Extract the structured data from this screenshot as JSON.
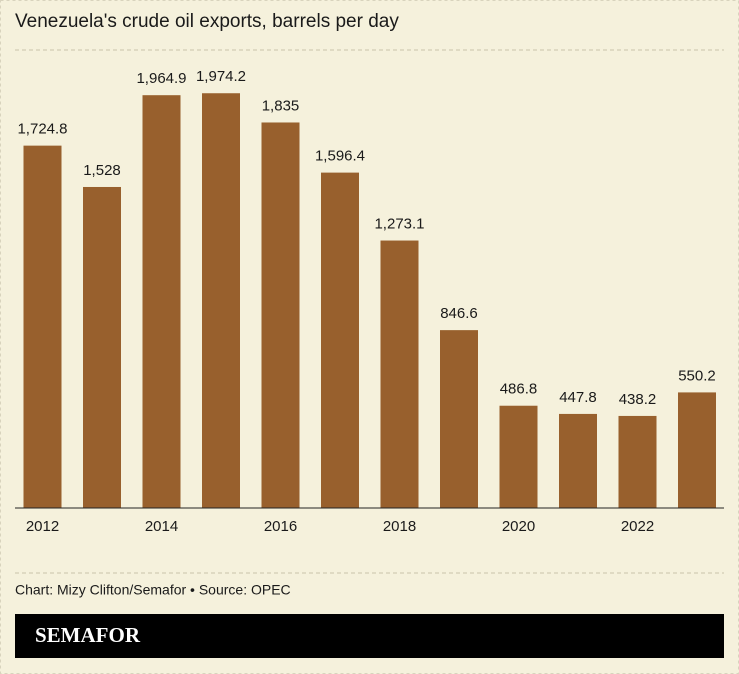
{
  "chart_data": {
    "type": "bar",
    "title": "Venezuela's crude oil exports, barrels per day",
    "categories": [
      "2012",
      null,
      "2014",
      null,
      "2016",
      null,
      "2018",
      null,
      "2020",
      null,
      "2022",
      null
    ],
    "values": [
      1724.8,
      1528,
      1964.9,
      1974.2,
      1835,
      1596.4,
      1273.1,
      846.6,
      486.8,
      447.8,
      438.2,
      550.2
    ],
    "value_labels": [
      "1,724.8",
      "1,528",
      "1,964.9",
      "1,974.2",
      "1,835",
      "1,596.4",
      "1,273.1",
      "846.6",
      "486.8",
      "447.8",
      "438.2",
      "550.2"
    ],
    "color": "#98602d",
    "ylim": [
      0,
      2180
    ],
    "source": "Chart: Mizy Clifton/Semafor • Source: OPEC",
    "brand": "SEMAFOR"
  }
}
